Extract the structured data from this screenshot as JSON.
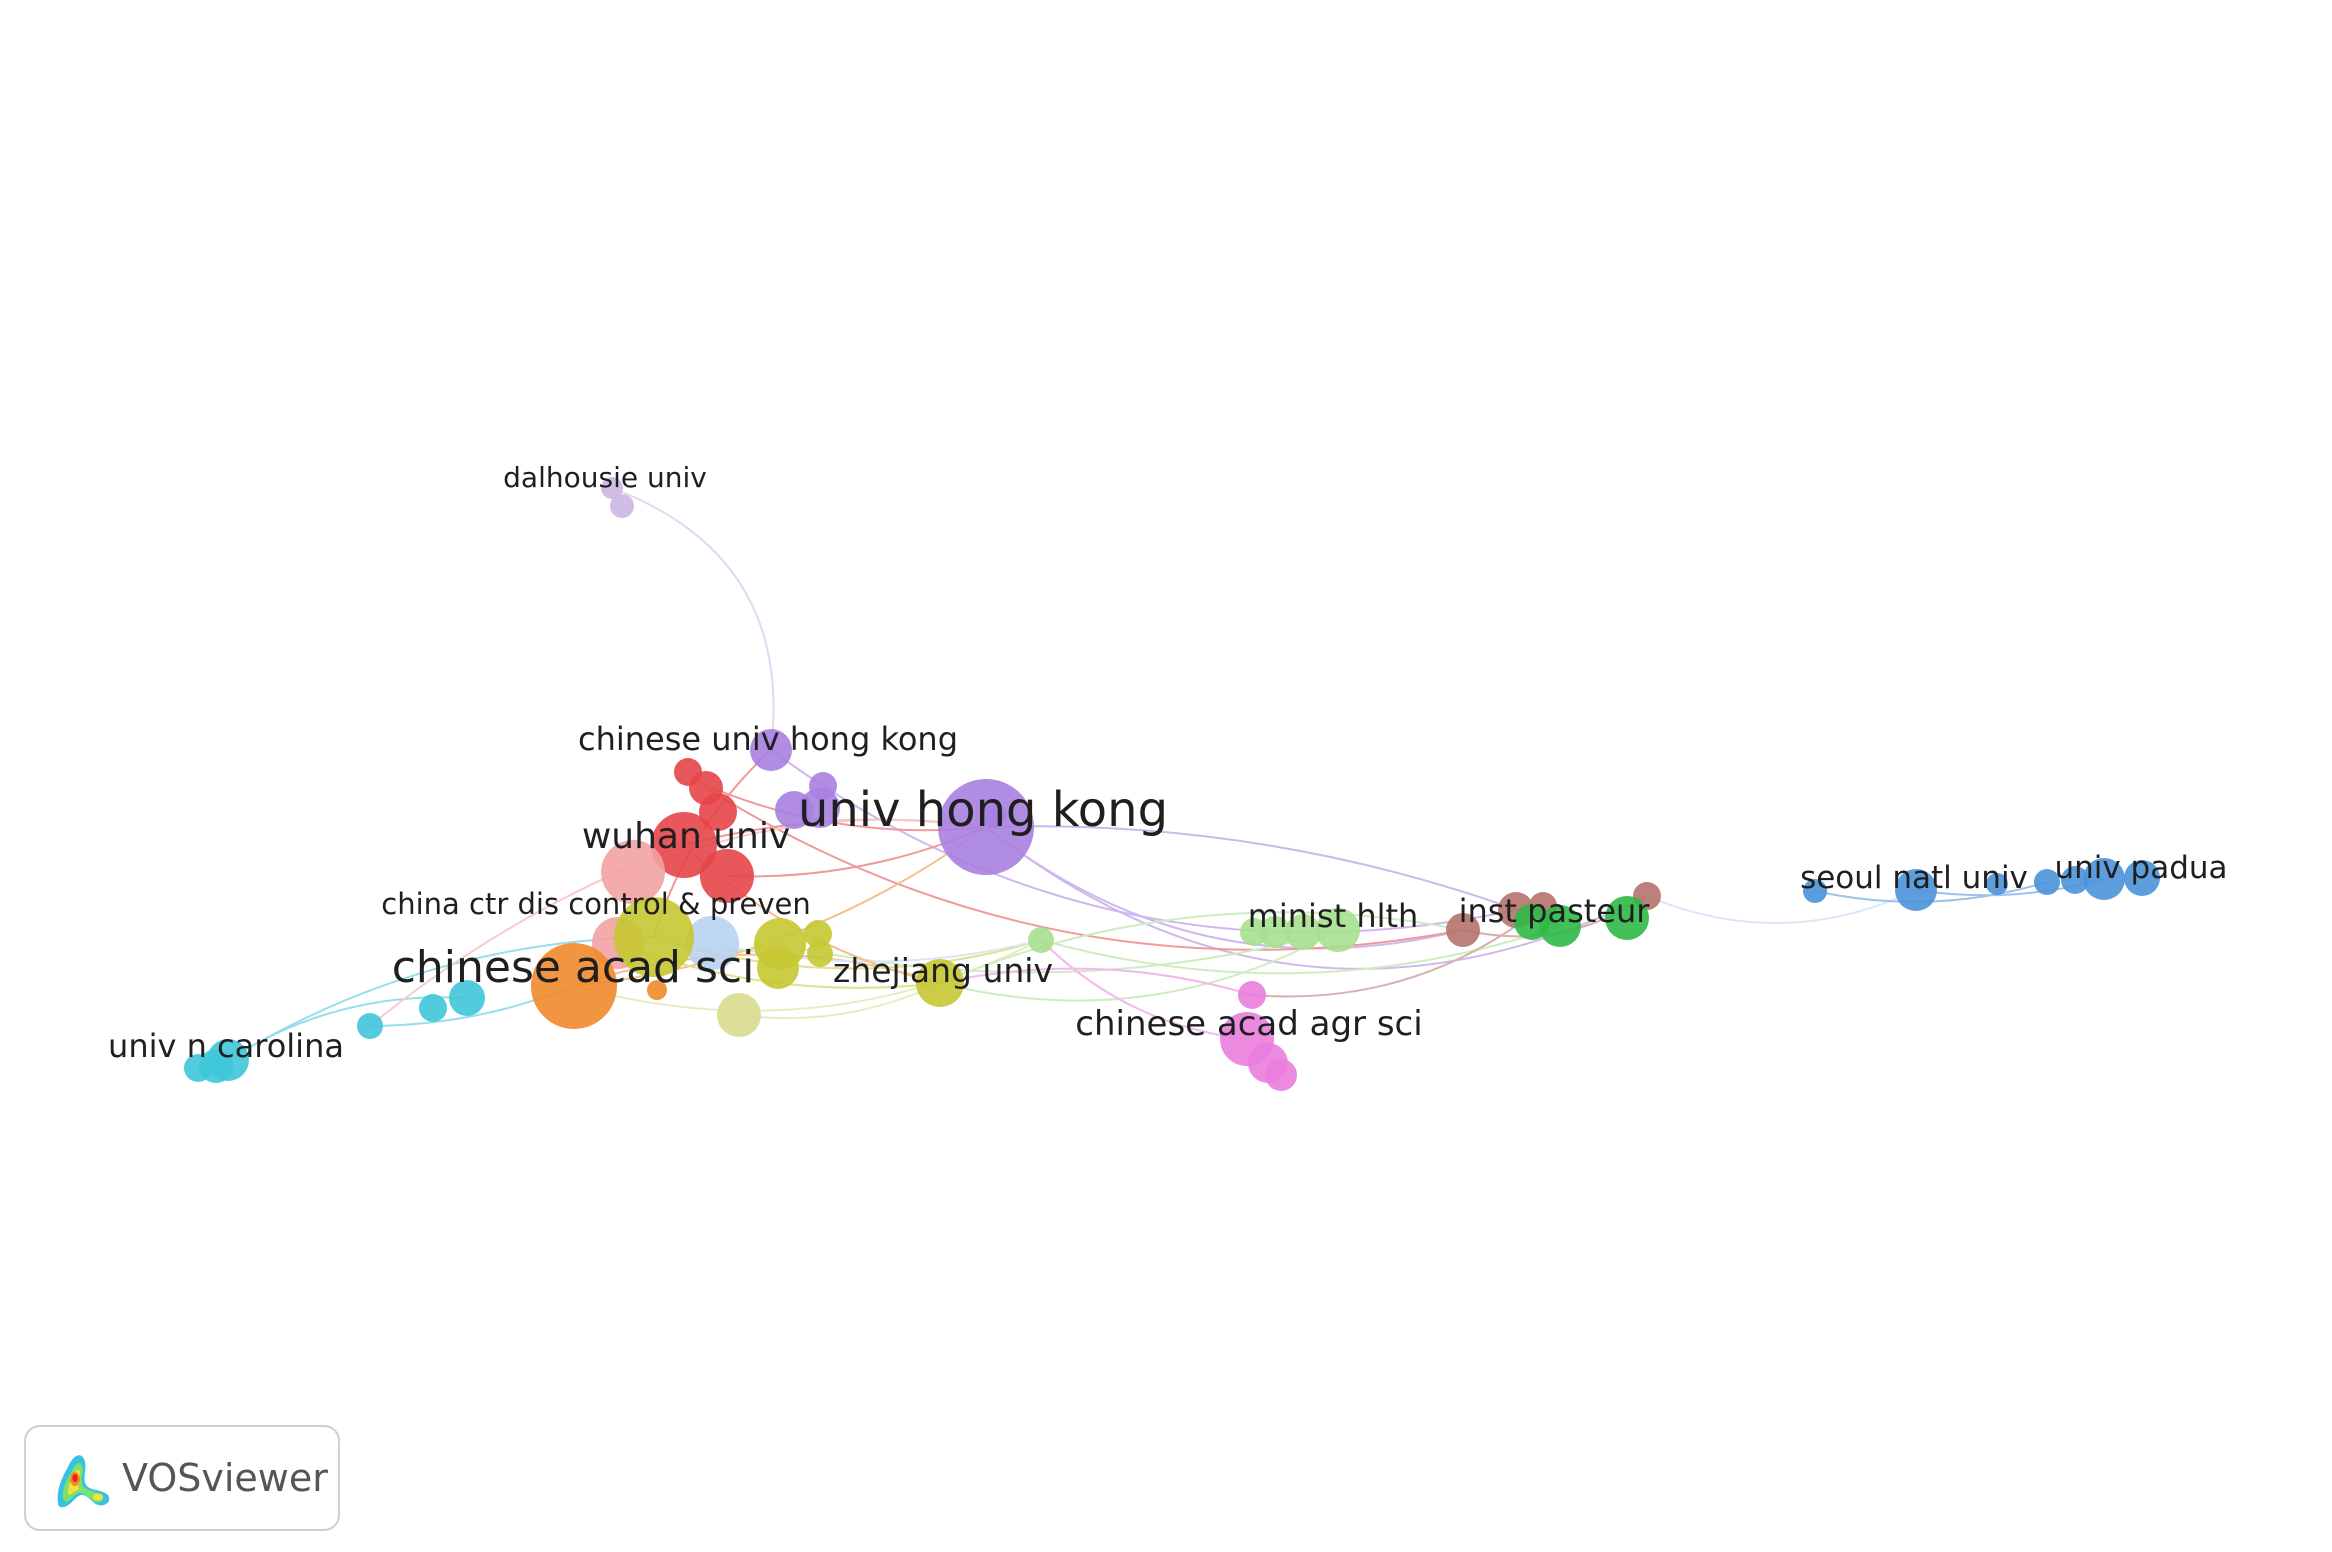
{
  "app": {
    "brand_name": "VOSviewer",
    "brand_icon": "vosviewer-density-logo-icon"
  },
  "clusters": [
    {
      "id": "purple",
      "color": "#a77fe0"
    },
    {
      "id": "red",
      "color": "#e64548"
    },
    {
      "id": "pink_light",
      "color": "#f2a2a2"
    },
    {
      "id": "olive",
      "color": "#c7c832"
    },
    {
      "id": "orange",
      "color": "#f08a2c"
    },
    {
      "id": "cyan",
      "color": "#3fc6d9"
    },
    {
      "id": "light_green",
      "color": "#a6e08f"
    },
    {
      "id": "green",
      "color": "#2fb946"
    },
    {
      "id": "brown",
      "color": "#b5736d"
    },
    {
      "id": "blue",
      "color": "#4a93d9"
    },
    {
      "id": "magenta",
      "color": "#ea7ddd"
    },
    {
      "id": "light_blue",
      "color": "#b9d3ef"
    },
    {
      "id": "lavender",
      "color": "#cdb6e3"
    },
    {
      "id": "khaki",
      "color": "#d9dc8e"
    }
  ],
  "labeled_nodes": [
    {
      "id": "univ_hong_kong",
      "label": "univ hong kong",
      "cluster": "purple"
    },
    {
      "id": "chinese_acad_sci",
      "label": "chinese acad sci",
      "cluster": "orange"
    },
    {
      "id": "wuhan_univ",
      "label": "wuhan univ",
      "cluster": "red"
    },
    {
      "id": "chinese_univ_hong_kong",
      "label": "chinese univ hong kong",
      "cluster": "purple"
    },
    {
      "id": "china_ctr_dis",
      "label": "china ctr dis control & preven",
      "cluster": "olive"
    },
    {
      "id": "zhejiang_univ",
      "label": "zhejiang univ",
      "cluster": "olive"
    },
    {
      "id": "dalhousie_univ",
      "label": "dalhousie univ",
      "cluster": "lavender"
    },
    {
      "id": "univ_n_carolina",
      "label": "univ n carolina",
      "cluster": "cyan"
    },
    {
      "id": "chinese_acad_agr_sci",
      "label": "chinese acad agr sci",
      "cluster": "magenta"
    },
    {
      "id": "minist_hlth",
      "label": "minist hlth",
      "cluster": "light_green"
    },
    {
      "id": "inst_pasteur",
      "label": "inst pasteur",
      "cluster": "green"
    },
    {
      "id": "seoul_natl_univ",
      "label": "seoul natl univ",
      "cluster": "blue"
    },
    {
      "id": "univ_padua",
      "label": "univ padua",
      "cluster": "blue"
    }
  ]
}
